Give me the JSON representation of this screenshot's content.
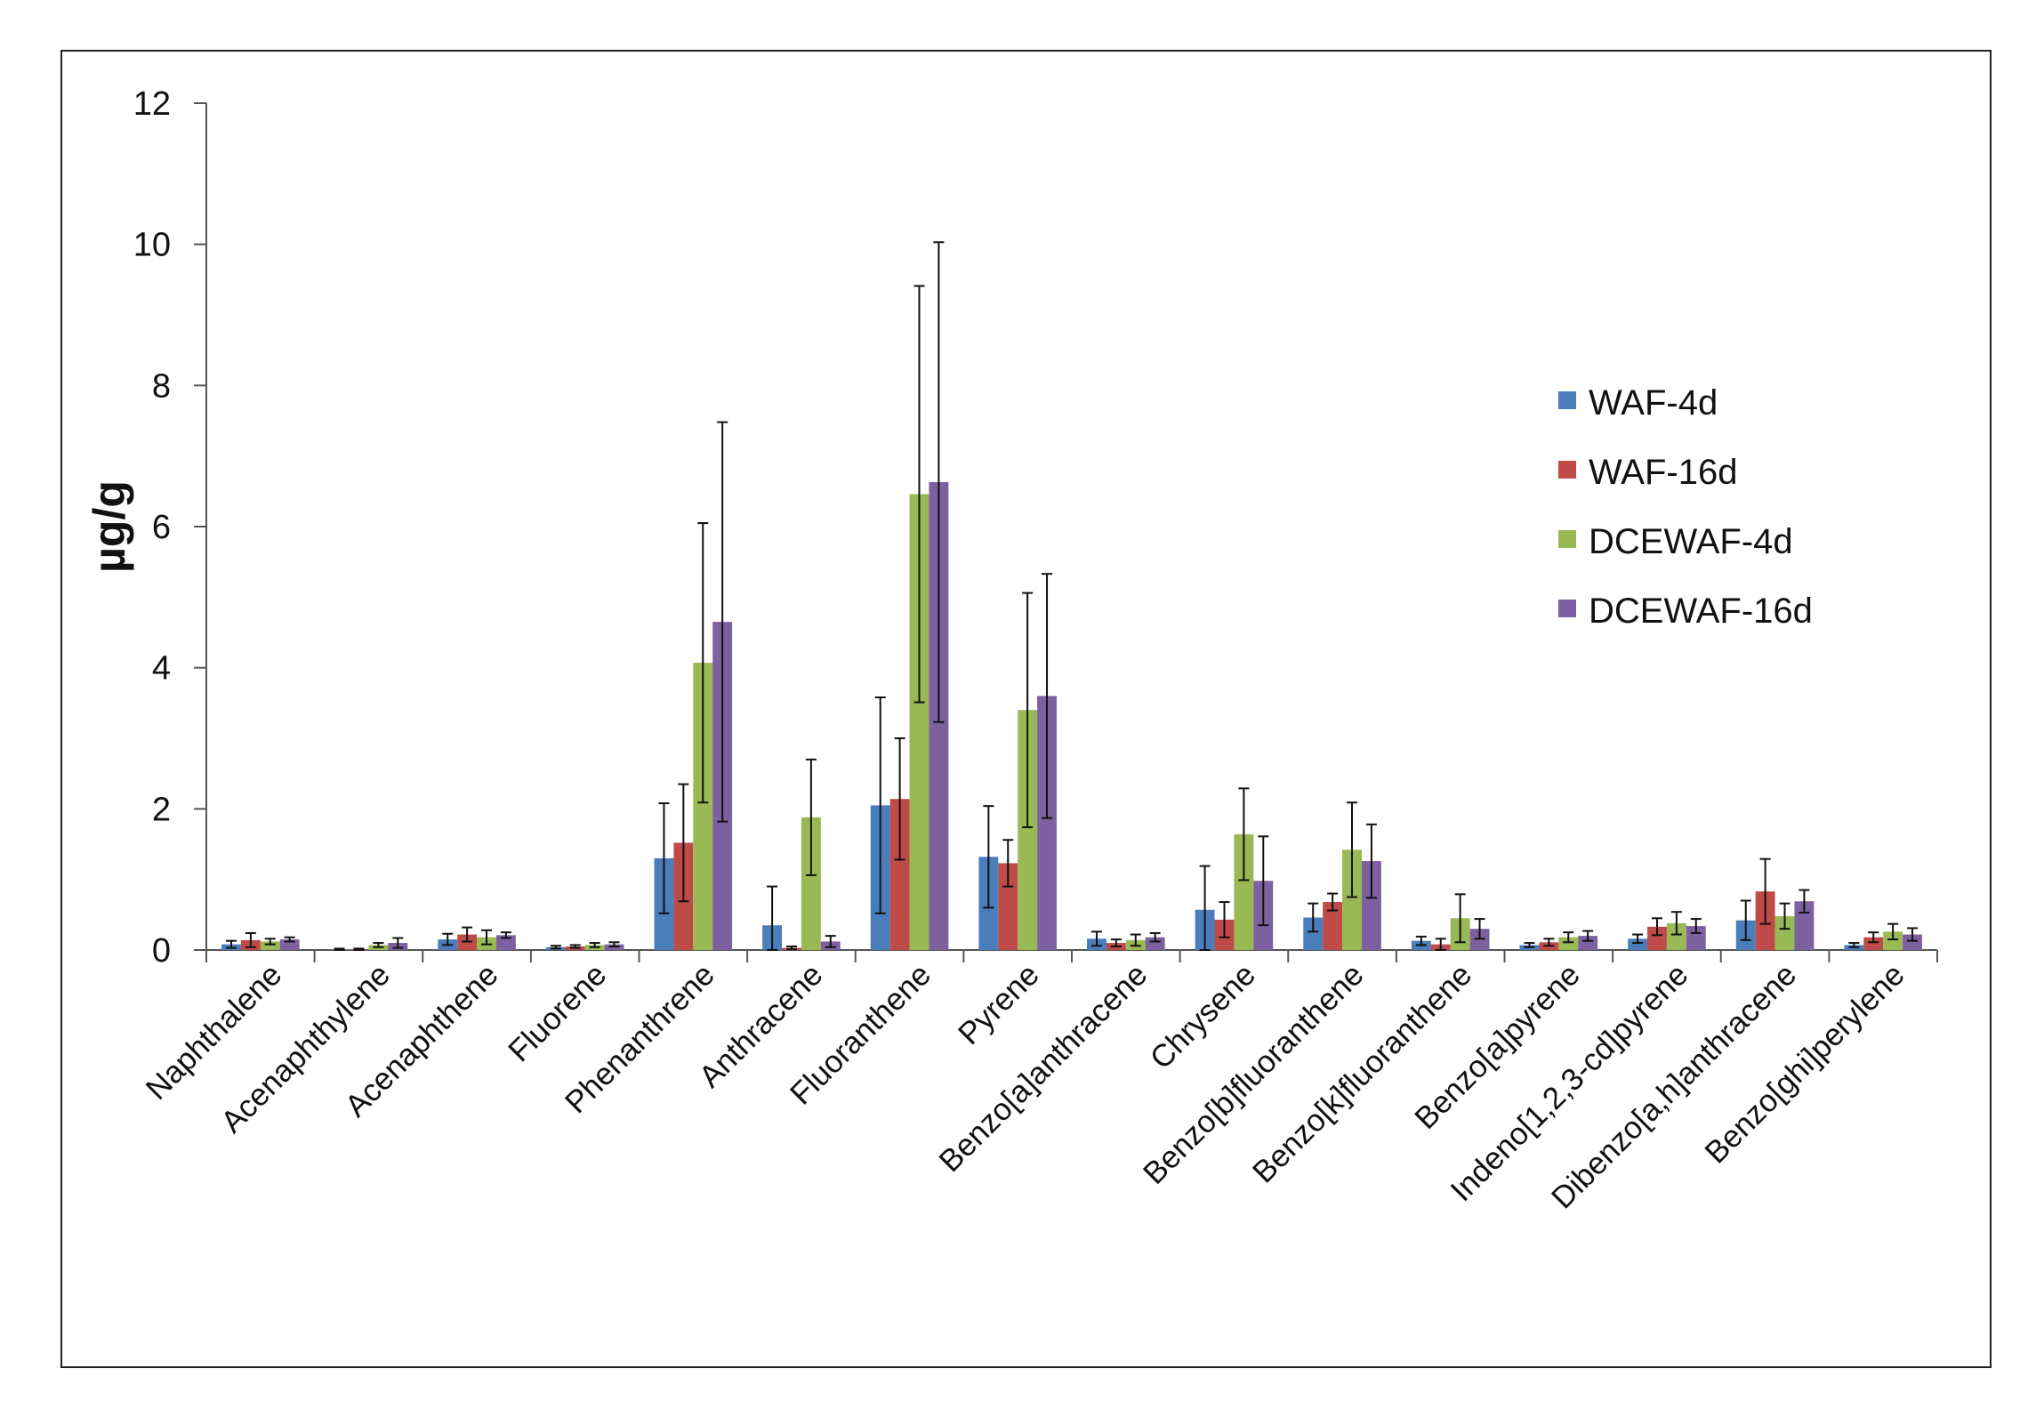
{
  "chart_data": {
    "type": "bar",
    "title": "",
    "xlabel": "",
    "ylabel": "µg/g",
    "ylim": [
      0,
      12
    ],
    "yticks": [
      "0",
      "2",
      "4",
      "6",
      "8",
      "10",
      "12"
    ],
    "grid": false,
    "legend_position": "right",
    "categories": [
      "Naphthalene",
      "Acenaphthylene",
      "Acenaphthene",
      "Fluorene",
      "Phenanthrene",
      "Anthracene",
      "Fluoranthene",
      "Pyrene",
      "Benzo[a]anthracene",
      "Chrysene",
      "Benzo[b]fluoranthene",
      "Benzo[k]fluoranthene",
      "Benzo[a]pyrene",
      "Indeno[1,2,3-cd]pyrene",
      "Dibenzo[a,h]anthracene",
      "Benzo[ghi]perylene"
    ],
    "series": [
      {
        "name": "WAF-4d",
        "color": "#4a7ebb",
        "values": [
          0.08,
          0.01,
          0.15,
          0.04,
          1.3,
          0.35,
          2.05,
          1.32,
          0.16,
          0.57,
          0.46,
          0.13,
          0.07,
          0.16,
          0.42,
          0.07
        ],
        "errors": [
          0.05,
          0.01,
          0.08,
          0.02,
          0.78,
          0.55,
          1.53,
          0.72,
          0.1,
          0.62,
          0.2,
          0.06,
          0.03,
          0.06,
          0.28,
          0.03
        ]
      },
      {
        "name": "WAF-16d",
        "color": "#be4b48",
        "values": [
          0.14,
          0.01,
          0.22,
          0.05,
          1.52,
          0.03,
          2.14,
          1.23,
          0.1,
          0.43,
          0.68,
          0.08,
          0.11,
          0.33,
          0.83,
          0.18
        ],
        "errors": [
          0.1,
          0.01,
          0.1,
          0.02,
          0.83,
          0.02,
          0.86,
          0.33,
          0.05,
          0.25,
          0.12,
          0.08,
          0.05,
          0.12,
          0.46,
          0.07
        ]
      },
      {
        "name": "DCEWAF-4d",
        "color": "#98b954",
        "values": [
          0.12,
          0.07,
          0.18,
          0.07,
          4.07,
          1.88,
          6.46,
          3.4,
          0.14,
          1.64,
          1.42,
          0.45,
          0.18,
          0.38,
          0.48,
          0.26
        ],
        "errors": [
          0.04,
          0.03,
          0.1,
          0.03,
          1.98,
          0.82,
          2.95,
          1.66,
          0.08,
          0.65,
          0.67,
          0.34,
          0.07,
          0.16,
          0.18,
          0.11
        ]
      },
      {
        "name": "DCEWAF-16d",
        "color": "#7d60a0",
        "values": [
          0.15,
          0.1,
          0.21,
          0.08,
          4.65,
          0.12,
          6.63,
          3.6,
          0.18,
          0.98,
          1.26,
          0.3,
          0.2,
          0.34,
          0.69,
          0.22
        ],
        "errors": [
          0.03,
          0.07,
          0.04,
          0.03,
          2.83,
          0.08,
          3.4,
          1.73,
          0.06,
          0.63,
          0.52,
          0.14,
          0.07,
          0.1,
          0.16,
          0.09
        ]
      }
    ]
  }
}
